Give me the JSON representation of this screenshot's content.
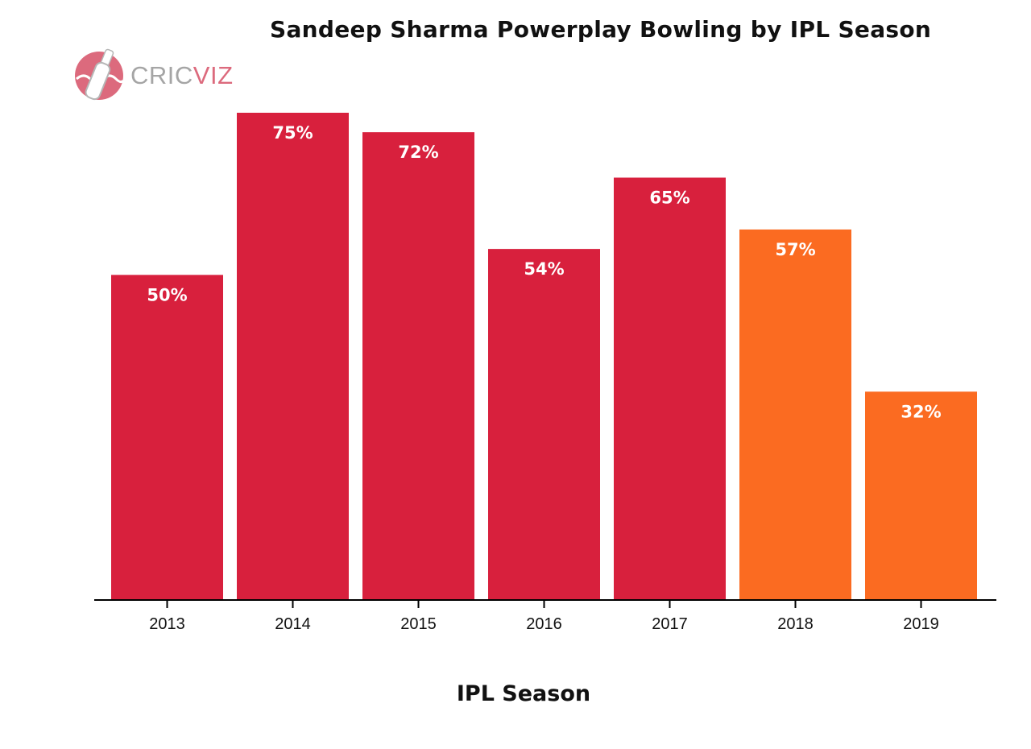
{
  "logo": {
    "text_a": "CRIC",
    "text_b": "VIZ"
  },
  "chart_data": {
    "type": "bar",
    "title": "Sandeep Sharma Powerplay Bowling by IPL Season",
    "xlabel": "IPL Season",
    "ylabel": "",
    "ylim": [
      0,
      75
    ],
    "categories": [
      "2013",
      "2014",
      "2015",
      "2016",
      "2017",
      "2018",
      "2019"
    ],
    "values": [
      50,
      75,
      72,
      54,
      65,
      57,
      32
    ],
    "value_labels": [
      "50%",
      "75%",
      "72%",
      "54%",
      "65%",
      "57%",
      "32%"
    ],
    "team_colors": [
      "#d8203d",
      "#d8203d",
      "#d8203d",
      "#d8203d",
      "#d8203d",
      "#fb6b21",
      "#fb6b21"
    ],
    "grid": false,
    "legend": "none"
  }
}
